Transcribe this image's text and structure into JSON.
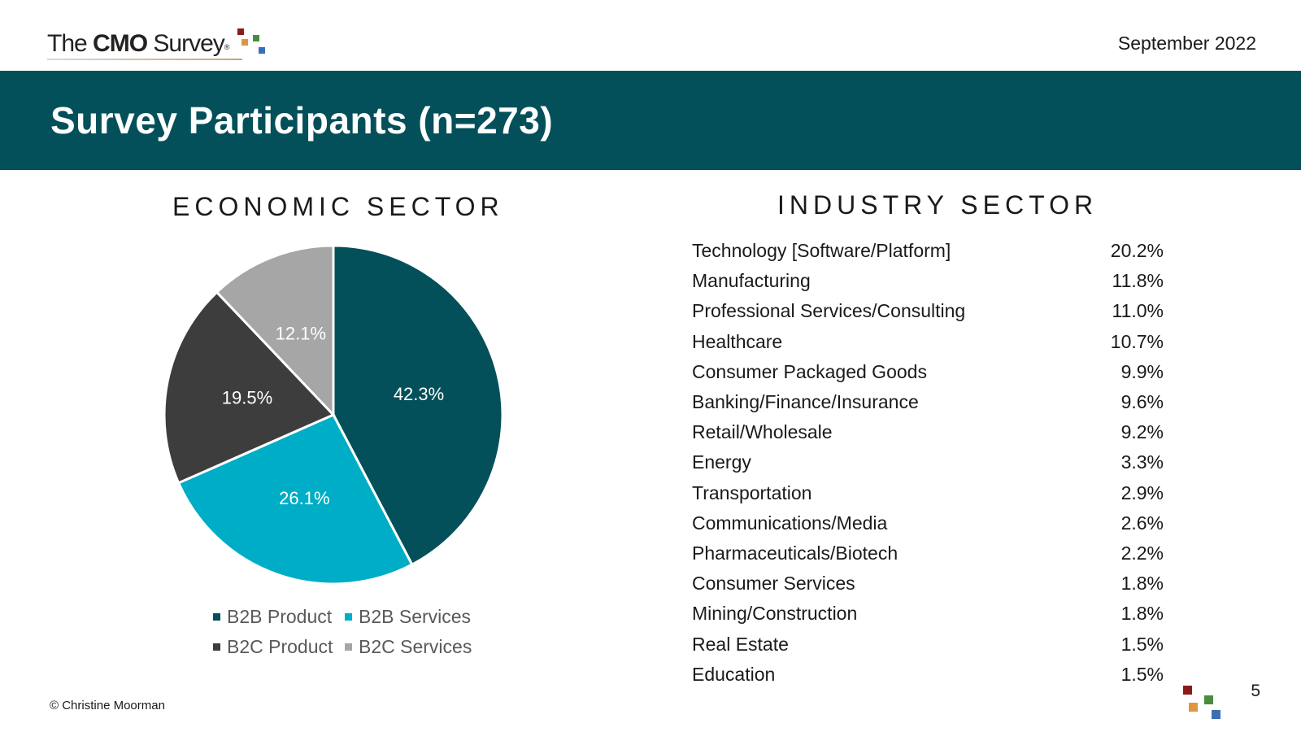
{
  "header": {
    "logo_the": "The",
    "logo_cmo": "CMO",
    "logo_survey": "Survey",
    "logo_reg": "®",
    "date": "September 2022"
  },
  "banner": {
    "title": "Survey Participants (n=273)"
  },
  "economic": {
    "title": "ECONOMIC SECTOR"
  },
  "industry": {
    "title": "INDUSTRY SECTOR",
    "rows": [
      {
        "label": "Technology [Software/Platform]",
        "value": "20.2%"
      },
      {
        "label": "Manufacturing",
        "value": "11.8%"
      },
      {
        "label": "Professional Services/Consulting",
        "value": "11.0%"
      },
      {
        "label": "Healthcare",
        "value": "10.7%"
      },
      {
        "label": "Consumer Packaged Goods",
        "value": "9.9%"
      },
      {
        "label": "Banking/Finance/Insurance",
        "value": "9.6%"
      },
      {
        "label": "Retail/Wholesale",
        "value": "9.2%"
      },
      {
        "label": "Energy",
        "value": "3.3%"
      },
      {
        "label": "Transportation",
        "value": "2.9%"
      },
      {
        "label": "Communications/Media",
        "value": "2.6%"
      },
      {
        "label": "Pharmaceuticals/Biotech",
        "value": "2.2%"
      },
      {
        "label": "Consumer Services",
        "value": "1.8%"
      },
      {
        "label": "Mining/Construction",
        "value": "1.8%"
      },
      {
        "label": "Real Estate",
        "value": "1.5%"
      },
      {
        "label": "Education",
        "value": "1.5%"
      }
    ]
  },
  "chart_data": {
    "type": "pie",
    "title": "ECONOMIC SECTOR",
    "categories": [
      "B2B Product",
      "B2B Services",
      "B2C Product",
      "B2C Services"
    ],
    "values": [
      42.3,
      26.1,
      19.5,
      12.1
    ],
    "labels": [
      "42.3%",
      "26.1%",
      "19.5%",
      "12.1%"
    ],
    "colors": [
      "#03505a",
      "#00adc6",
      "#3d3d3d",
      "#a6a6a6"
    ],
    "label_color": "#ffffff",
    "legend_position": "bottom"
  },
  "colors": {
    "banner": "#03505a",
    "logo_red": "#8b1a1a",
    "logo_green": "#4a8c3f",
    "logo_orange": "#e0963f",
    "logo_blue": "#3a6fb5"
  },
  "footer": {
    "copyright": "© Christine Moorman",
    "page_number": "5"
  }
}
